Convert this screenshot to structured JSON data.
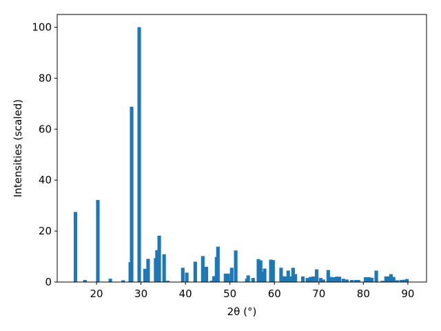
{
  "chart_data": {
    "type": "bar",
    "xlabel": "2θ (°)",
    "ylabel": "Intensities (scaled)",
    "color": "#1f77b4",
    "x": [
      15.27,
      17.4,
      20.3,
      23.1,
      26.0,
      27.6,
      27.9,
      29.6,
      30.9,
      31.6,
      33.3,
      33.6,
      34.1,
      35.2,
      36.0,
      39.4,
      40.3,
      42.2,
      43.9,
      44.7,
      45.9,
      46.4,
      47.0,
      47.3,
      49.0,
      49.6,
      50.4,
      51.3,
      53.8,
      54.1,
      55.2,
      56.4,
      56.9,
      57.4,
      57.8,
      59.2,
      59.7,
      61.5,
      61.9,
      62.6,
      63.1,
      63.6,
      64.2,
      64.7,
      66.4,
      67.4,
      68.1,
      68.7,
      69.5,
      70.4,
      71.0,
      72.1,
      72.6,
      73.3,
      74.0,
      74.6,
      75.5,
      76.3,
      77.4,
      78.3,
      78.9,
      80.5,
      81.2,
      81.9,
      82.9,
      84.3,
      85.1,
      85.7,
      86.2,
      86.8,
      87.6,
      88.5,
      89.1,
      89.8
    ],
    "values": [
      27.5,
      0.8,
      32.2,
      1.3,
      0.7,
      7.8,
      68.8,
      100,
      5.2,
      9.1,
      9.4,
      12.5,
      18.2,
      10.9,
      0.5,
      5.6,
      3.7,
      8.0,
      10.2,
      6.0,
      0.5,
      2.3,
      9.8,
      13.9,
      3.3,
      3.3,
      5.6,
      12.4,
      1.3,
      2.6,
      1.6,
      9.0,
      8.5,
      4.0,
      5.3,
      8.8,
      8.6,
      5.6,
      2.3,
      2.2,
      4.5,
      2.2,
      5.6,
      3.1,
      2.2,
      1.6,
      2.0,
      2.2,
      5.0,
      1.6,
      1.0,
      4.7,
      2.0,
      1.9,
      2.1,
      2.1,
      1.3,
      1.0,
      0.8,
      0.8,
      0.8,
      1.9,
      1.9,
      1.7,
      4.5,
      0.5,
      2.2,
      2.2,
      3.1,
      2.0,
      0.7,
      0.8,
      0.9,
      1.2
    ],
    "xlim": [
      11.16,
      94.2
    ],
    "ylim": [
      0,
      105
    ],
    "xticks": [
      20,
      30,
      40,
      50,
      60,
      70,
      80,
      90
    ],
    "yticks": [
      0,
      20,
      40,
      60,
      80,
      100
    ]
  }
}
